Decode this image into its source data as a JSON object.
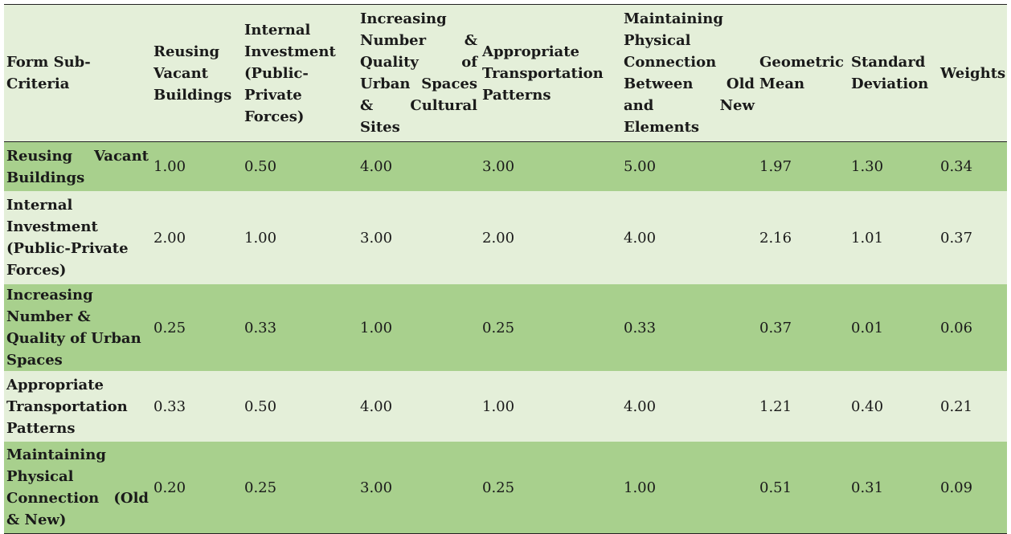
{
  "table": {
    "headers": [
      "Form Sub-Criteria",
      "Reusing Vacant Buildings",
      "Internal Investment (Public-Private Forces)",
      "Increasing Number & Quality of Urban Spaces & Cultural Sites",
      "Appropriate Transportation Patterns",
      "Maintaining Physical Connection Between Old and New Elements",
      "Geometric Mean",
      "Standard Deviation",
      "Weights"
    ],
    "rows": [
      {
        "label": "Reusing Vacant Buildings",
        "values": [
          "1.00",
          "0.50",
          "4.00",
          "3.00",
          "5.00",
          "1.97",
          "1.30",
          "0.34"
        ]
      },
      {
        "label": "Internal Investment (Public-Private Forces)",
        "values": [
          "2.00",
          "1.00",
          "3.00",
          "2.00",
          "4.00",
          "2.16",
          "1.01",
          "0.37"
        ]
      },
      {
        "label": "Increasing Number & Quality of Urban Spaces",
        "values": [
          "0.25",
          "0.33",
          "1.00",
          "0.25",
          "0.33",
          "0.37",
          "0.01",
          "0.06"
        ]
      },
      {
        "label": "Appropriate Transportation Patterns",
        "values": [
          "0.33",
          "0.50",
          "4.00",
          "1.00",
          "4.00",
          "1.21",
          "0.40",
          "0.21"
        ]
      },
      {
        "label": "Maintaining Physical Connection (Old & New)",
        "values": [
          "0.20",
          "0.25",
          "3.00",
          "0.25",
          "1.00",
          "0.51",
          "0.31",
          "0.09"
        ]
      }
    ]
  },
  "colors": {
    "dark_row": "#a8d08d",
    "light_row": "#e4efd9",
    "rule": "#222222"
  }
}
